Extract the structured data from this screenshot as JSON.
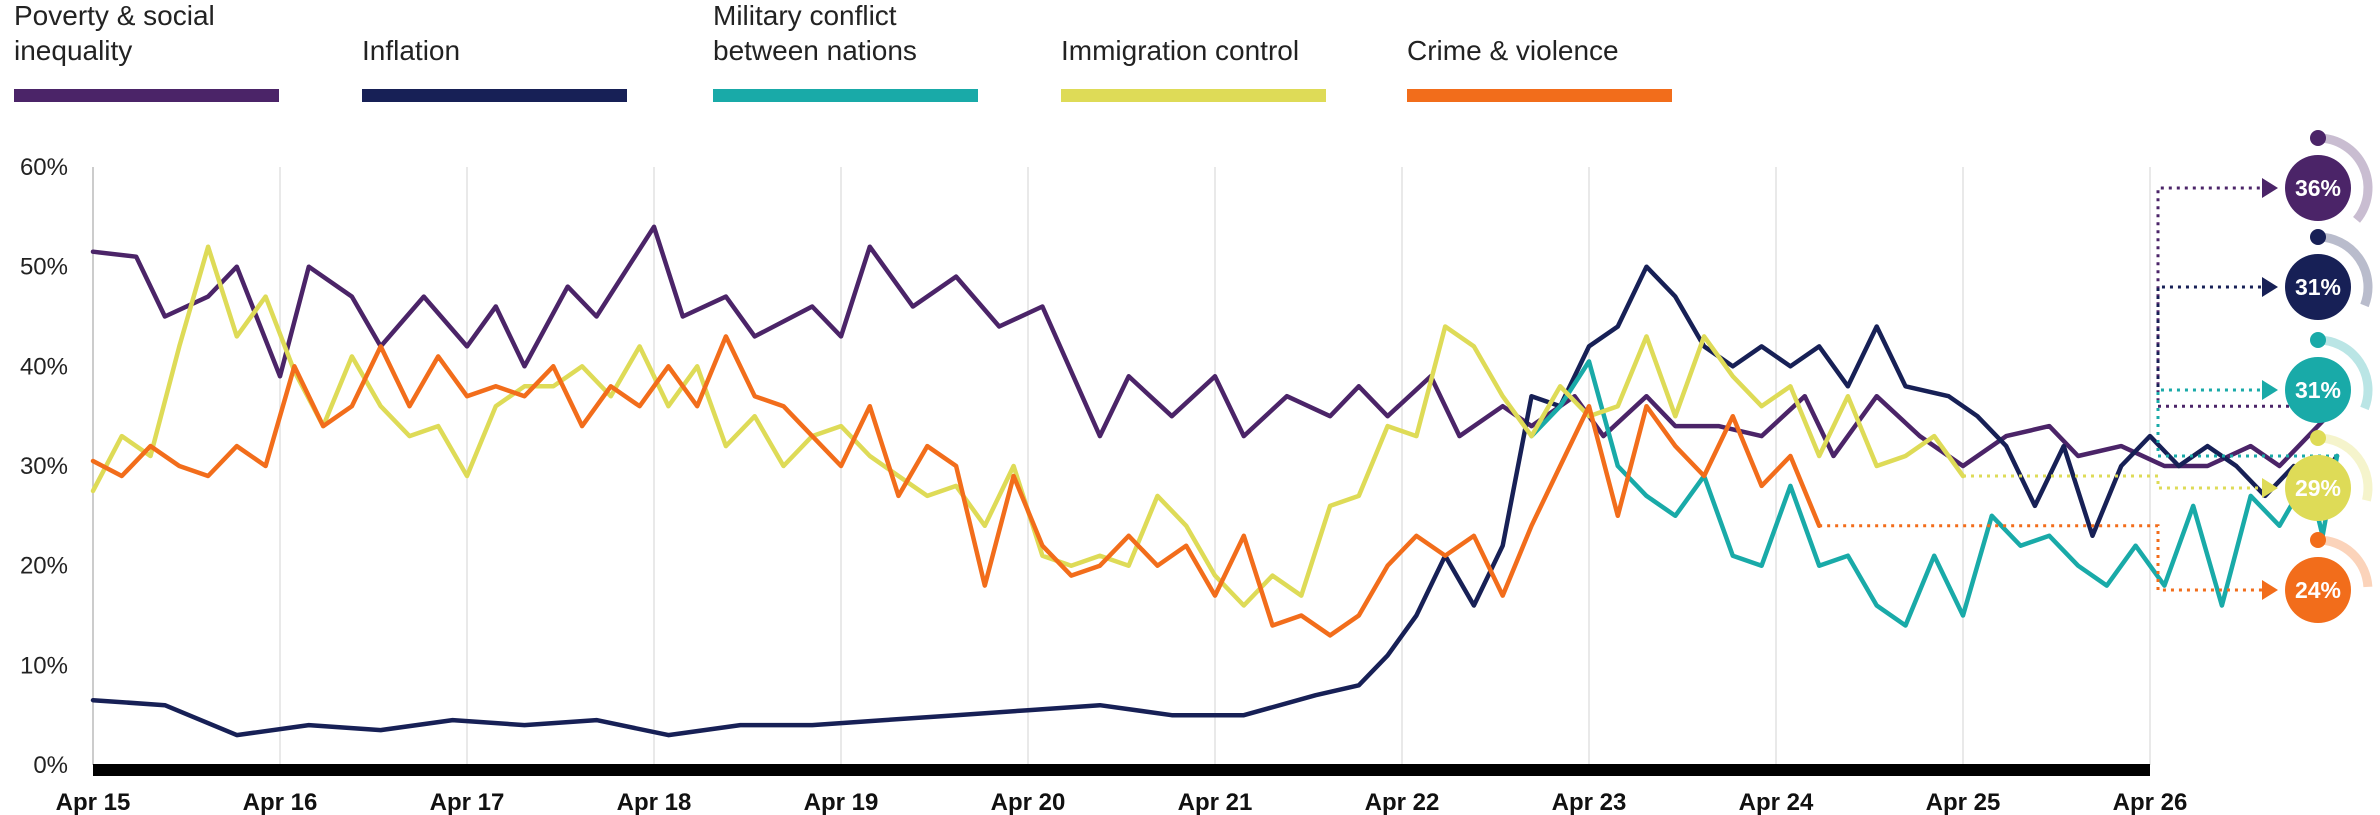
{
  "chart_data": {
    "type": "line",
    "ylim": [
      0,
      60
    ],
    "y_ticks": [
      "0%",
      "10%",
      "20%",
      "30%",
      "40%",
      "50%",
      "60%"
    ],
    "x_labels": [
      "Apr 15",
      "Apr 16",
      "Apr 17",
      "Apr 18",
      "Apr 19",
      "Apr 20",
      "Apr 21",
      "Apr 22",
      "Apr 23",
      "Apr 24",
      "Apr 25",
      "Apr 26"
    ],
    "grid": "vertical",
    "legend_position": "top",
    "series": [
      {
        "name": "Poverty & social\ninequality",
        "color": "#4b2468",
        "end_label": "36%",
        "points": [
          [
            0,
            51.5
          ],
          [
            0.3,
            51
          ],
          [
            0.5,
            45
          ],
          [
            0.8,
            47
          ],
          [
            1.0,
            50
          ],
          [
            1.3,
            39
          ],
          [
            1.5,
            50
          ],
          [
            1.8,
            47
          ],
          [
            2.0,
            42
          ],
          [
            2.3,
            47
          ],
          [
            2.6,
            42
          ],
          [
            2.8,
            46
          ],
          [
            3.0,
            40
          ],
          [
            3.3,
            48
          ],
          [
            3.5,
            45
          ],
          [
            3.9,
            54
          ],
          [
            4.1,
            45
          ],
          [
            4.4,
            47
          ],
          [
            4.6,
            43
          ],
          [
            5.0,
            46
          ],
          [
            5.2,
            43
          ],
          [
            5.4,
            52
          ],
          [
            5.7,
            46
          ],
          [
            6.0,
            49
          ],
          [
            6.3,
            44
          ],
          [
            6.6,
            46
          ],
          [
            7.0,
            33
          ],
          [
            7.2,
            39
          ],
          [
            7.5,
            35
          ],
          [
            7.8,
            39
          ],
          [
            8.0,
            33
          ],
          [
            8.3,
            37
          ],
          [
            8.6,
            35
          ],
          [
            8.8,
            38
          ],
          [
            9.0,
            35
          ],
          [
            9.3,
            39
          ],
          [
            9.5,
            33
          ],
          [
            9.8,
            36
          ],
          [
            10.0,
            34
          ],
          [
            10.3,
            37
          ],
          [
            10.5,
            33
          ],
          [
            10.8,
            37
          ],
          [
            11.0,
            34
          ],
          [
            11.3,
            34
          ],
          [
            11.6,
            33
          ],
          [
            11.9,
            37
          ],
          [
            12.1,
            31
          ],
          [
            12.4,
            37
          ],
          [
            12.7,
            33
          ],
          [
            13.0,
            30
          ],
          [
            13.3,
            33
          ],
          [
            13.6,
            34
          ],
          [
            13.8,
            31
          ],
          [
            14.1,
            32
          ],
          [
            14.4,
            30
          ],
          [
            14.7,
            30
          ],
          [
            15.0,
            32
          ],
          [
            15.2,
            30
          ],
          [
            15.6,
            36
          ]
        ]
      },
      {
        "name": "Inflation",
        "color": "#172056",
        "end_label": "31%",
        "points": [
          [
            0,
            6.5
          ],
          [
            0.5,
            6
          ],
          [
            1.0,
            3
          ],
          [
            1.5,
            4
          ],
          [
            2.0,
            3.5
          ],
          [
            2.5,
            4.5
          ],
          [
            3.0,
            4
          ],
          [
            3.5,
            4.5
          ],
          [
            4.0,
            3
          ],
          [
            4.5,
            4
          ],
          [
            5.0,
            4
          ],
          [
            5.5,
            4.5
          ],
          [
            6.0,
            5
          ],
          [
            6.5,
            5.5
          ],
          [
            7.0,
            6
          ],
          [
            7.5,
            5
          ],
          [
            8.0,
            5
          ],
          [
            8.5,
            7
          ],
          [
            8.8,
            8
          ],
          [
            9.0,
            11
          ],
          [
            9.2,
            15
          ],
          [
            9.4,
            21
          ],
          [
            9.6,
            16
          ],
          [
            9.8,
            22
          ],
          [
            10.0,
            37
          ],
          [
            10.2,
            36
          ],
          [
            10.4,
            42
          ],
          [
            10.6,
            44
          ],
          [
            10.8,
            50
          ],
          [
            11.0,
            47
          ],
          [
            11.2,
            42
          ],
          [
            11.4,
            40
          ],
          [
            11.6,
            42
          ],
          [
            11.8,
            40
          ],
          [
            12.0,
            42
          ],
          [
            12.2,
            38
          ],
          [
            12.4,
            44
          ],
          [
            12.6,
            38
          ],
          [
            12.9,
            37
          ],
          [
            13.1,
            35
          ],
          [
            13.3,
            32
          ],
          [
            13.5,
            26
          ],
          [
            13.7,
            32
          ],
          [
            13.9,
            23
          ],
          [
            14.1,
            30
          ],
          [
            14.3,
            33
          ],
          [
            14.5,
            30
          ],
          [
            14.7,
            32
          ],
          [
            14.9,
            30
          ],
          [
            15.1,
            27
          ],
          [
            15.3,
            30
          ],
          [
            15.5,
            29
          ],
          [
            15.6,
            31
          ]
        ]
      },
      {
        "name": "Military conflict\nbetween nations",
        "color": "#19aaa8",
        "end_label": "31%",
        "points": [
          [
            10.0,
            33
          ],
          [
            10.2,
            36
          ],
          [
            10.4,
            40.5
          ],
          [
            10.6,
            30
          ],
          [
            10.8,
            27
          ],
          [
            11.0,
            25
          ],
          [
            11.2,
            29
          ],
          [
            11.4,
            21
          ],
          [
            11.6,
            20
          ],
          [
            11.8,
            28
          ],
          [
            12.0,
            20
          ],
          [
            12.2,
            21
          ],
          [
            12.4,
            16
          ],
          [
            12.6,
            14
          ],
          [
            12.8,
            21
          ],
          [
            13.0,
            15
          ],
          [
            13.2,
            25
          ],
          [
            13.4,
            22
          ],
          [
            13.6,
            23
          ],
          [
            13.8,
            20
          ],
          [
            14.0,
            18
          ],
          [
            14.2,
            22
          ],
          [
            14.4,
            18
          ],
          [
            14.6,
            26
          ],
          [
            14.8,
            16
          ],
          [
            15.0,
            27
          ],
          [
            15.2,
            24
          ],
          [
            15.4,
            29
          ],
          [
            15.5,
            23
          ],
          [
            15.6,
            31
          ]
        ]
      },
      {
        "name": "Immigration control",
        "color": "#dedb57",
        "end_label": "29%",
        "points": [
          [
            0,
            27.5
          ],
          [
            0.2,
            33
          ],
          [
            0.4,
            31
          ],
          [
            0.6,
            42
          ],
          [
            0.8,
            52
          ],
          [
            1.0,
            43
          ],
          [
            1.2,
            47
          ],
          [
            1.4,
            39.5
          ],
          [
            1.6,
            34
          ],
          [
            1.8,
            41
          ],
          [
            2.0,
            36
          ],
          [
            2.2,
            33
          ],
          [
            2.4,
            34
          ],
          [
            2.6,
            29
          ],
          [
            2.8,
            36
          ],
          [
            3.0,
            38
          ],
          [
            3.2,
            38
          ],
          [
            3.4,
            40
          ],
          [
            3.6,
            37
          ],
          [
            3.8,
            42
          ],
          [
            4.0,
            36
          ],
          [
            4.2,
            40
          ],
          [
            4.4,
            32
          ],
          [
            4.6,
            35
          ],
          [
            4.8,
            30
          ],
          [
            5.0,
            33
          ],
          [
            5.2,
            34
          ],
          [
            5.4,
            31
          ],
          [
            5.6,
            29
          ],
          [
            5.8,
            27
          ],
          [
            6.0,
            28
          ],
          [
            6.2,
            24
          ],
          [
            6.4,
            30
          ],
          [
            6.6,
            21
          ],
          [
            6.8,
            20
          ],
          [
            7.0,
            21
          ],
          [
            7.2,
            20
          ],
          [
            7.4,
            27
          ],
          [
            7.6,
            24
          ],
          [
            7.8,
            19
          ],
          [
            8.0,
            16
          ],
          [
            8.2,
            19
          ],
          [
            8.4,
            17
          ],
          [
            8.6,
            26
          ],
          [
            8.8,
            27
          ],
          [
            9.0,
            34
          ],
          [
            9.2,
            33
          ],
          [
            9.4,
            44
          ],
          [
            9.6,
            42
          ],
          [
            9.8,
            37
          ],
          [
            10.0,
            33
          ],
          [
            10.2,
            38
          ],
          [
            10.4,
            35
          ],
          [
            10.6,
            36
          ],
          [
            10.8,
            43
          ],
          [
            11.0,
            35
          ],
          [
            11.2,
            43
          ],
          [
            11.4,
            39
          ],
          [
            11.6,
            36
          ],
          [
            11.8,
            38
          ],
          [
            12.0,
            31
          ],
          [
            12.2,
            37
          ],
          [
            12.4,
            30
          ],
          [
            12.6,
            31
          ],
          [
            12.8,
            33
          ],
          [
            13.0,
            29
          ]
        ]
      },
      {
        "name": "Crime & violence",
        "color": "#f26d1b",
        "end_label": "24%",
        "points": [
          [
            0,
            30.5
          ],
          [
            0.2,
            29
          ],
          [
            0.4,
            32
          ],
          [
            0.6,
            30
          ],
          [
            0.8,
            29
          ],
          [
            1.0,
            32
          ],
          [
            1.2,
            30
          ],
          [
            1.4,
            40
          ],
          [
            1.6,
            34
          ],
          [
            1.8,
            36
          ],
          [
            2.0,
            42
          ],
          [
            2.2,
            36
          ],
          [
            2.4,
            41
          ],
          [
            2.6,
            37
          ],
          [
            2.8,
            38
          ],
          [
            3.0,
            37
          ],
          [
            3.2,
            40
          ],
          [
            3.4,
            34
          ],
          [
            3.6,
            38
          ],
          [
            3.8,
            36
          ],
          [
            4.0,
            40
          ],
          [
            4.2,
            36
          ],
          [
            4.4,
            43
          ],
          [
            4.6,
            37
          ],
          [
            4.8,
            36
          ],
          [
            5.0,
            33
          ],
          [
            5.2,
            30
          ],
          [
            5.4,
            36
          ],
          [
            5.6,
            27
          ],
          [
            5.8,
            32
          ],
          [
            6.0,
            30
          ],
          [
            6.2,
            18
          ],
          [
            6.4,
            29
          ],
          [
            6.6,
            22
          ],
          [
            6.8,
            19
          ],
          [
            7.0,
            20
          ],
          [
            7.2,
            23
          ],
          [
            7.4,
            20
          ],
          [
            7.6,
            22
          ],
          [
            7.8,
            17
          ],
          [
            8.0,
            23
          ],
          [
            8.2,
            14
          ],
          [
            8.4,
            15
          ],
          [
            8.6,
            13
          ],
          [
            8.8,
            15
          ],
          [
            9.0,
            20
          ],
          [
            9.2,
            23
          ],
          [
            9.4,
            21
          ],
          [
            9.6,
            23
          ],
          [
            9.8,
            17
          ],
          [
            10.0,
            24
          ],
          [
            10.2,
            30
          ],
          [
            10.4,
            36
          ],
          [
            10.6,
            25
          ],
          [
            10.8,
            36
          ],
          [
            11.0,
            32
          ],
          [
            11.2,
            29
          ],
          [
            11.4,
            35
          ],
          [
            11.6,
            28
          ],
          [
            11.8,
            31
          ],
          [
            12.0,
            24
          ]
        ]
      }
    ]
  }
}
